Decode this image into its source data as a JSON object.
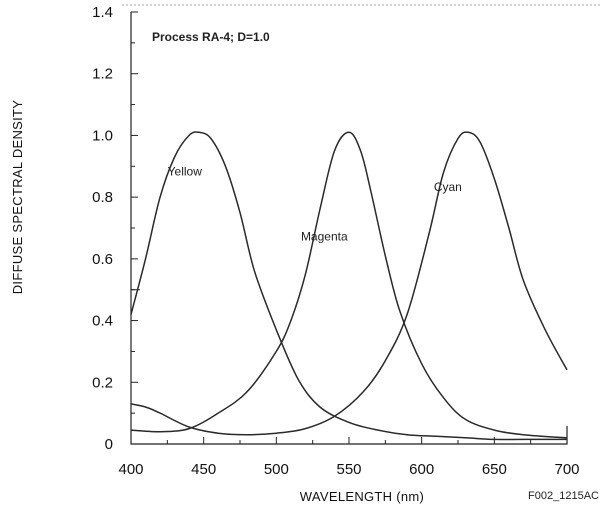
{
  "chart_data": {
    "type": "line",
    "title": "",
    "annotation": "Process RA-4; D=1.0",
    "xlabel": "WAVELENGTH (nm)",
    "ylabel": "DIFFUSE SPECTRAL DENSITY",
    "xlim": [
      400,
      700
    ],
    "ylim": [
      0,
      1.4
    ],
    "x_ticks": [
      400,
      450,
      500,
      550,
      600,
      650,
      700
    ],
    "y_ticks": [
      0,
      0.2,
      0.4,
      0.6,
      0.8,
      1.0,
      1.2,
      1.4
    ],
    "y_tick_labels": [
      "0",
      "0.2",
      "0.4",
      "0.6",
      "0.8",
      "1.0",
      "1.2",
      "1.4"
    ],
    "grid": false,
    "series": [
      {
        "name": "Yellow",
        "x": [
          400,
          410,
          420,
          430,
          440,
          447,
          455,
          465,
          475,
          485,
          500,
          515,
          530,
          550,
          570,
          590,
          610,
          630,
          650,
          670,
          700
        ],
        "values": [
          0.42,
          0.6,
          0.8,
          0.93,
          1.0,
          1.01,
          0.99,
          0.9,
          0.75,
          0.56,
          0.37,
          0.21,
          0.12,
          0.07,
          0.045,
          0.03,
          0.025,
          0.02,
          0.015,
          0.015,
          0.015
        ]
      },
      {
        "name": "Magenta",
        "x": [
          400,
          420,
          440,
          460,
          480,
          500,
          510,
          520,
          530,
          540,
          550,
          558,
          565,
          575,
          585,
          600,
          615,
          630,
          650,
          670,
          700
        ],
        "values": [
          0.045,
          0.04,
          0.05,
          0.1,
          0.17,
          0.3,
          0.4,
          0.55,
          0.76,
          0.95,
          1.01,
          0.95,
          0.82,
          0.61,
          0.43,
          0.26,
          0.15,
          0.08,
          0.045,
          0.03,
          0.02
        ]
      },
      {
        "name": "Cyan",
        "x": [
          400,
          410,
          420,
          440,
          460,
          480,
          500,
          520,
          540,
          560,
          575,
          590,
          605,
          615,
          625,
          632,
          640,
          650,
          660,
          670,
          685,
          700
        ],
        "values": [
          0.13,
          0.12,
          0.1,
          0.055,
          0.035,
          0.03,
          0.035,
          0.05,
          0.09,
          0.17,
          0.27,
          0.42,
          0.68,
          0.88,
          0.99,
          1.01,
          0.98,
          0.86,
          0.7,
          0.53,
          0.37,
          0.24
        ]
      }
    ]
  },
  "figure_id": "F002_1215AC"
}
